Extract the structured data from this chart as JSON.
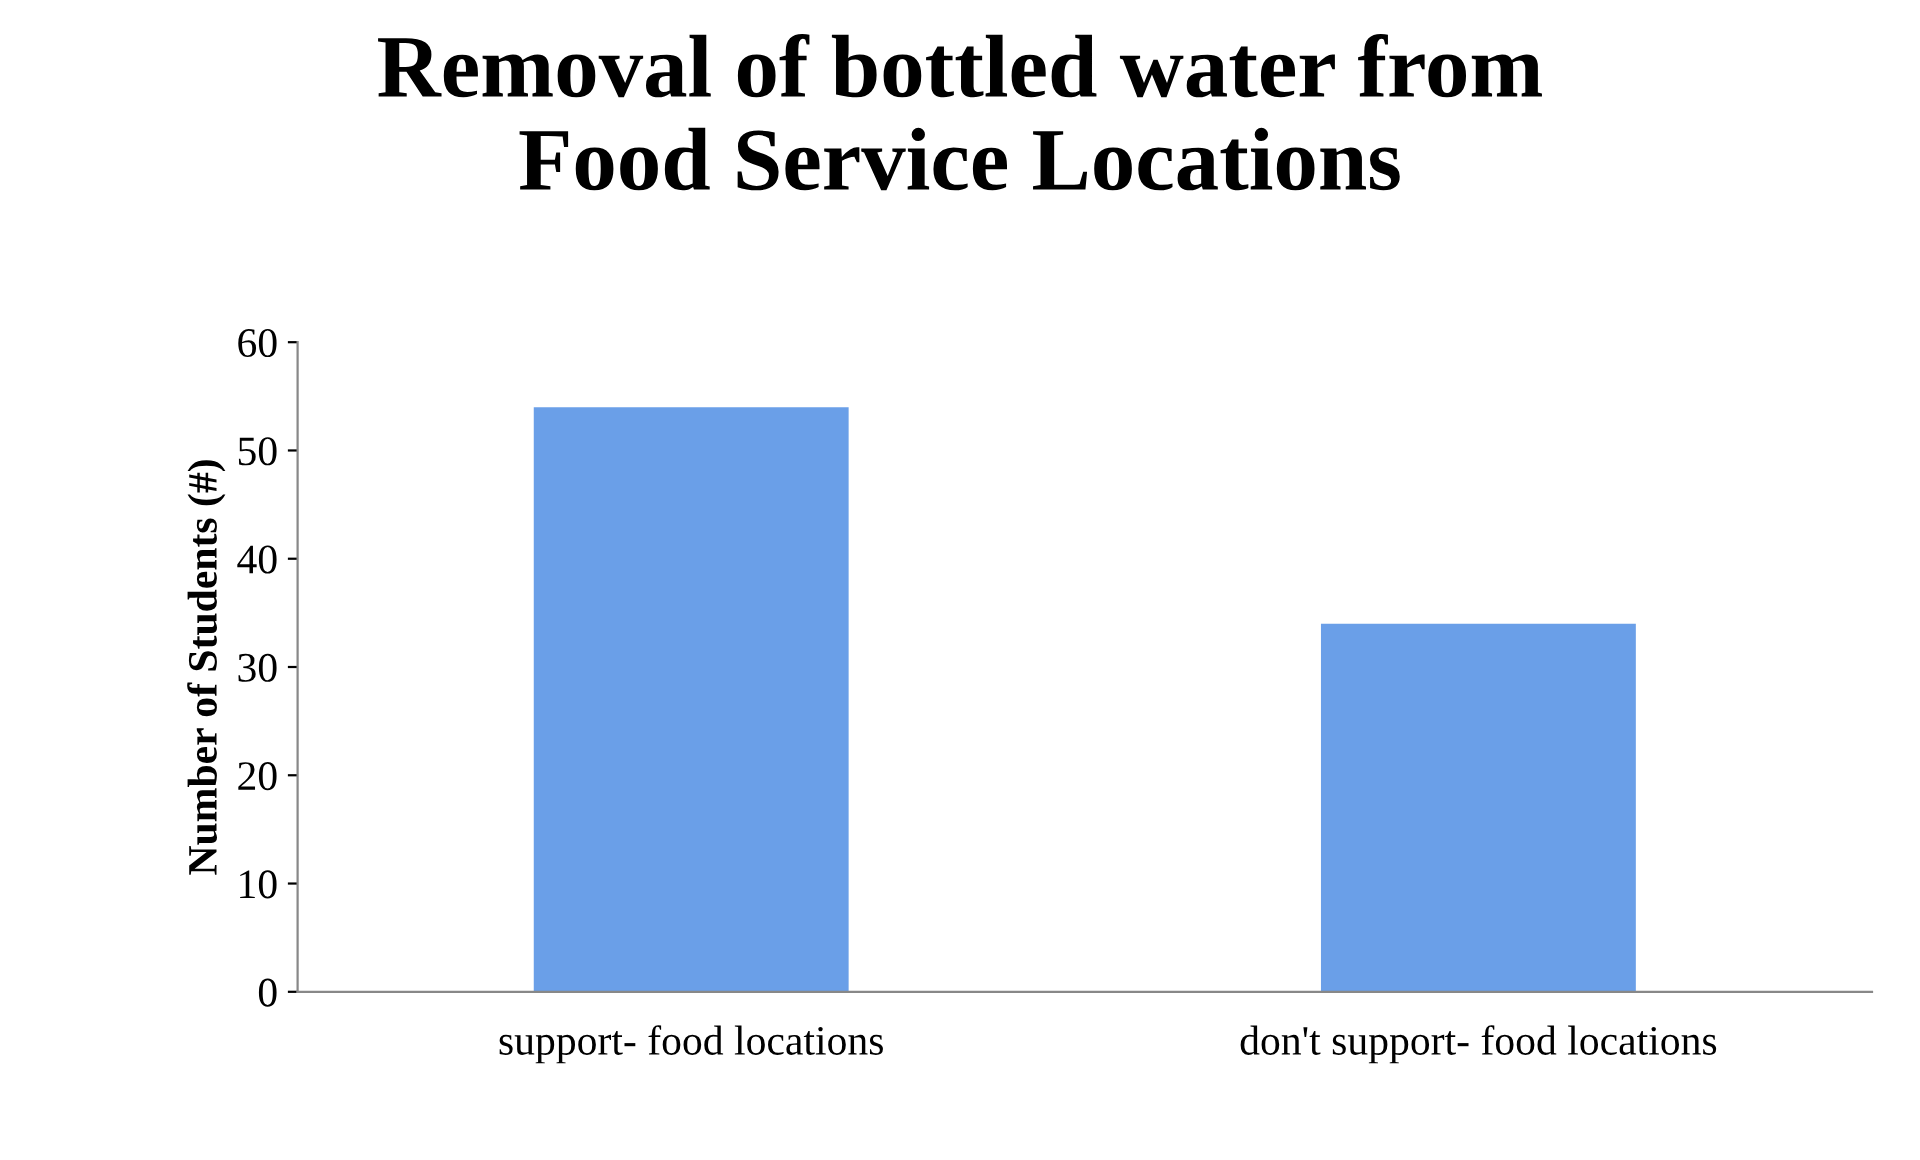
{
  "chart_data": {
    "type": "bar",
    "title": "Removal of bottled water from\nFood Service Locations",
    "ylabel": "Number of Students (#)",
    "categories": [
      "support- food locations",
      "don't support- food locations"
    ],
    "values": [
      54,
      34
    ],
    "color": "#6a9fe8",
    "ylim": [
      0,
      60
    ],
    "yticks": [
      0,
      10,
      20,
      30,
      40,
      50,
      60
    ],
    "grid": false,
    "legend": false
  }
}
